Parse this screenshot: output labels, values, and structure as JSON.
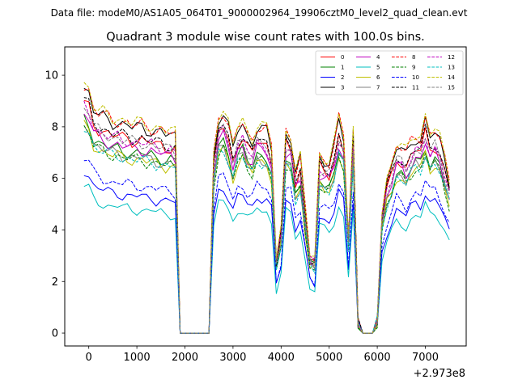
{
  "figure": {
    "suptitle": "Data file: modeM0/AS1A05_064T01_9000002964_19906cztM0_level2_quad_clean.evt",
    "title": "Quadrant 3 module wise count rates with 100.0s bins.",
    "offset_label": "+2.973e8"
  },
  "chart_data": {
    "type": "line",
    "title": "Quadrant 3 module wise count rates with 100.0s bins.",
    "xlabel": "",
    "ylabel": "",
    "x_offset": 297300000,
    "xlim": [
      -500,
      7850
    ],
    "ylim": [
      -0.5,
      11.1
    ],
    "xticks": [
      0,
      1000,
      2000,
      3000,
      4000,
      5000,
      6000,
      7000
    ],
    "yticks": [
      0,
      2,
      4,
      6,
      8,
      10
    ],
    "legend_position": "top-right",
    "x": [
      -100,
      0,
      100,
      200,
      300,
      400,
      500,
      600,
      700,
      800,
      900,
      1000,
      1100,
      1200,
      1300,
      1400,
      1500,
      1600,
      1700,
      1800,
      1900,
      2000,
      2100,
      2200,
      2300,
      2400,
      2500,
      2600,
      2700,
      2800,
      2900,
      3000,
      3100,
      3200,
      3300,
      3400,
      3500,
      3600,
      3700,
      3800,
      3900,
      4000,
      4100,
      4200,
      4300,
      4400,
      4500,
      4600,
      4700,
      4800,
      4900,
      5000,
      5100,
      5200,
      5300,
      5400,
      5500,
      5600,
      5700,
      5800,
      5900,
      6000,
      6100,
      6200,
      6300,
      6400,
      6500,
      6600,
      6700,
      6800,
      6900,
      7000,
      7100,
      7200,
      7300,
      7400,
      7500
    ],
    "base_shape": [
      1.0,
      0.98,
      0.91,
      0.89,
      0.88,
      0.87,
      0.86,
      0.86,
      0.85,
      0.85,
      0.84,
      0.84,
      0.84,
      0.83,
      0.83,
      0.82,
      0.82,
      0.81,
      0.81,
      0.8,
      0.0,
      0.0,
      0.0,
      0.0,
      0.0,
      0.0,
      0.0,
      0.72,
      0.88,
      0.9,
      0.84,
      0.75,
      0.83,
      0.85,
      0.8,
      0.78,
      0.84,
      0.83,
      0.82,
      0.75,
      0.3,
      0.42,
      0.82,
      0.8,
      0.65,
      0.7,
      0.5,
      0.32,
      0.3,
      0.72,
      0.7,
      0.69,
      0.75,
      0.86,
      0.8,
      0.4,
      0.82,
      0.05,
      0.0,
      0.0,
      0.0,
      0.05,
      0.5,
      0.62,
      0.68,
      0.76,
      0.75,
      0.72,
      0.77,
      0.8,
      0.79,
      0.87,
      0.8,
      0.82,
      0.78,
      0.7,
      0.62
    ],
    "series": [
      {
        "name": "0",
        "color": "#ff0000",
        "style": "solid",
        "level": 8.9
      },
      {
        "name": "1",
        "color": "#008000",
        "style": "solid",
        "level": 8.3
      },
      {
        "name": "2",
        "color": "#0000ff",
        "style": "solid",
        "level": 6.3
      },
      {
        "name": "3",
        "color": "#000000",
        "style": "solid",
        "level": 9.5
      },
      {
        "name": "4",
        "color": "#bf00bf",
        "style": "solid",
        "level": 8.5
      },
      {
        "name": "5",
        "color": "#00bfbf",
        "style": "solid",
        "level": 5.7
      },
      {
        "name": "6",
        "color": "#bfbf00",
        "style": "solid",
        "level": 8.0
      },
      {
        "name": "7",
        "color": "#808080",
        "style": "solid",
        "level": 8.1
      },
      {
        "name": "8",
        "color": "#ff0000",
        "style": "dashed",
        "level": 9.6
      },
      {
        "name": "9",
        "color": "#008000",
        "style": "dashed",
        "level": 8.0
      },
      {
        "name": "10",
        "color": "#0000ff",
        "style": "dashed",
        "level": 6.8
      },
      {
        "name": "11",
        "color": "#000000",
        "style": "dashed",
        "level": 9.0
      },
      {
        "name": "12",
        "color": "#bf00bf",
        "style": "dashed",
        "level": 8.8
      },
      {
        "name": "13",
        "color": "#00bfbf",
        "style": "dashed",
        "level": 8.0
      },
      {
        "name": "14",
        "color": "#bfbf00",
        "style": "dashed",
        "level": 9.7
      },
      {
        "name": "15",
        "color": "#808080",
        "style": "dashed",
        "level": 8.8
      }
    ]
  }
}
